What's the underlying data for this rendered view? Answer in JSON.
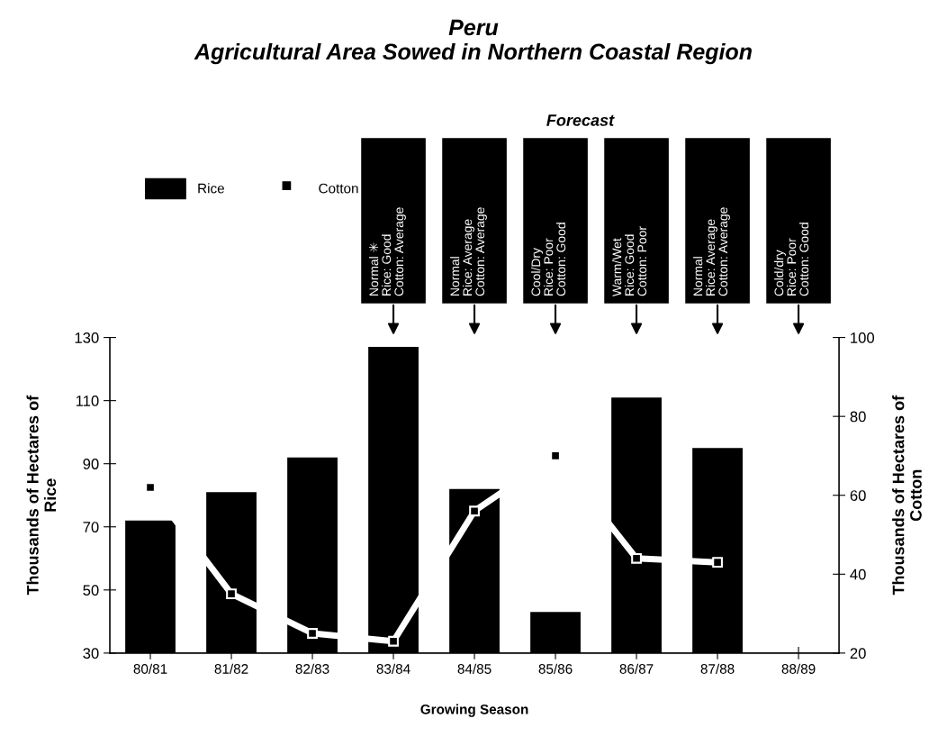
{
  "chart_data": {
    "type": "bar",
    "title": "Peru\nAgricultural Area Sowed in Northern Coastal Region",
    "xlabel": "Growing Season",
    "ylabel": "Thousands of Hectares of\nRice",
    "y2label": "Thousands of Hectares of\nCotton",
    "categories": [
      "80/81",
      "81/82",
      "82/83",
      "83/84",
      "84/85",
      "85/86",
      "86/87",
      "87/88",
      "88/89"
    ],
    "series": [
      {
        "name": "Rice",
        "color": "#000000",
        "values": [
          72,
          81,
          92,
          127,
          82,
          43,
          111,
          95,
          null
        ]
      },
      {
        "name": "Cotton",
        "type": "line",
        "axis": "y2",
        "color": "#ffffff",
        "values": [
          62,
          35,
          25,
          23,
          56,
          70,
          44,
          43,
          null
        ]
      }
    ],
    "ylim": [
      30,
      130
    ],
    "yticks": [
      30,
      50,
      70,
      90,
      110,
      130
    ],
    "y2lim": [
      20,
      100
    ],
    "y2ticks": [
      20,
      40,
      60,
      80,
      100
    ],
    "marker": "square",
    "line_style": "solid",
    "grid": false,
    "legend": "top left",
    "annotations": [
      "Forecast",
      "Normal ✳\nRice: Good\nCotton: Average",
      "Normal\nRice: Average\nCotton: Average",
      "Cool/Dry\nRice: Poor\nCotton: Good",
      "Warm/Wet\nRice: Good\nCotton: Poor",
      "Normal\nRice: Average\nCotton: Average",
      "Cold/dry\nRice: Poor\nCotton: Good"
    ]
  }
}
